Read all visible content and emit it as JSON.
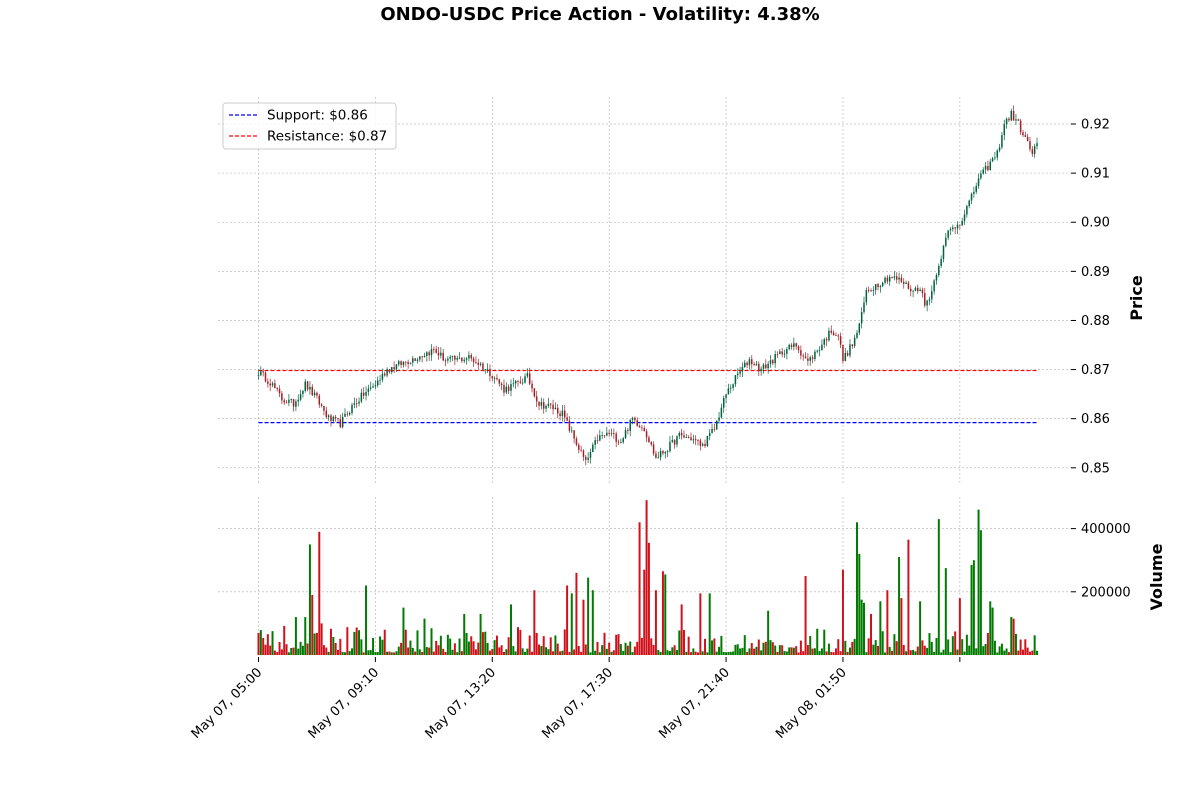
{
  "chart_data": {
    "type": "candlestick",
    "title": "ONDO-USDC Price Action - Volatility: 4.38%",
    "x_tick_labels": [
      "May 07, 05:00",
      "May 07, 09:10",
      "May 07, 13:20",
      "May 07, 17:30",
      "May 07, 21:40",
      "May 08, 01:50"
    ],
    "x_tick_indices": [
      0,
      50,
      100,
      150,
      200,
      250
    ],
    "bar_count": 290,
    "interval_minutes": 5,
    "price_panel": {
      "ylabel": "Price",
      "ylim": [
        0.8465,
        0.9255
      ],
      "yticks": [
        0.85,
        0.86,
        0.87,
        0.88,
        0.89,
        0.9,
        0.91,
        0.92
      ],
      "ytick_labels": [
        "0.85",
        "0.86",
        "0.87",
        "0.88",
        "0.89",
        "0.90",
        "0.91",
        "0.92"
      ],
      "grid": true,
      "legend_position": "upper-left"
    },
    "volume_panel": {
      "ylabel": "Volume",
      "ylim": [
        0,
        500000
      ],
      "yticks": [
        200000,
        400000
      ],
      "ytick_labels": [
        "200000",
        "400000"
      ]
    },
    "lines": [
      {
        "name": "Support: $0.86",
        "value": 0.8592,
        "color": "#0000ff",
        "style": "dashed"
      },
      {
        "name": "Resistance: $0.87",
        "value": 0.8698,
        "color": "#ff0000",
        "style": "dashed"
      }
    ],
    "close_path": [
      [
        0,
        0.8695
      ],
      [
        5,
        0.8675
      ],
      [
        10,
        0.864
      ],
      [
        15,
        0.863
      ],
      [
        20,
        0.867
      ],
      [
        25,
        0.864
      ],
      [
        30,
        0.86
      ],
      [
        35,
        0.859
      ],
      [
        40,
        0.8625
      ],
      [
        45,
        0.865
      ],
      [
        50,
        0.867
      ],
      [
        55,
        0.87
      ],
      [
        60,
        0.871
      ],
      [
        65,
        0.872
      ],
      [
        70,
        0.873
      ],
      [
        75,
        0.874
      ],
      [
        80,
        0.872
      ],
      [
        85,
        0.872
      ],
      [
        90,
        0.8725
      ],
      [
        95,
        0.871
      ],
      [
        100,
        0.869
      ],
      [
        105,
        0.866
      ],
      [
        110,
        0.867
      ],
      [
        115,
        0.8685
      ],
      [
        120,
        0.863
      ],
      [
        125,
        0.8625
      ],
      [
        130,
        0.861
      ],
      [
        135,
        0.856
      ],
      [
        140,
        0.851
      ],
      [
        145,
        0.856
      ],
      [
        150,
        0.857
      ],
      [
        155,
        0.8555
      ],
      [
        160,
        0.86
      ],
      [
        165,
        0.858
      ],
      [
        170,
        0.852
      ],
      [
        175,
        0.854
      ],
      [
        180,
        0.8565
      ],
      [
        185,
        0.856
      ],
      [
        190,
        0.8545
      ],
      [
        195,
        0.858
      ],
      [
        200,
        0.865
      ],
      [
        205,
        0.869
      ],
      [
        210,
        0.872
      ],
      [
        215,
        0.87
      ],
      [
        220,
        0.872
      ],
      [
        225,
        0.874
      ],
      [
        230,
        0.875
      ],
      [
        235,
        0.8715
      ],
      [
        240,
        0.8745
      ],
      [
        245,
        0.878
      ],
      [
        248,
        0.877
      ],
      [
        250,
        0.872
      ],
      [
        255,
        0.876
      ],
      [
        258,
        0.881
      ],
      [
        260,
        0.886
      ],
      [
        265,
        0.8875
      ],
      [
        270,
        0.889
      ],
      [
        275,
        0.888
      ],
      [
        280,
        0.886
      ],
      [
        283,
        0.887
      ],
      [
        285,
        0.883
      ],
      [
        288,
        0.886
      ],
      [
        290,
        0.89
      ]
    ],
    "close_path_extension": [
      [
        290,
        0.89
      ],
      [
        295,
        0.898
      ],
      [
        300,
        0.9
      ],
      [
        305,
        0.905
      ],
      [
        308,
        0.909
      ],
      [
        310,
        0.91
      ],
      [
        313,
        0.912
      ],
      [
        316,
        0.914
      ],
      [
        319,
        0.92
      ],
      [
        322,
        0.922
      ],
      [
        325,
        0.92
      ],
      [
        327,
        0.918
      ],
      [
        329,
        0.916
      ],
      [
        331,
        0.914
      ],
      [
        333,
        0.916
      ]
    ],
    "volume_spikes": [
      [
        0,
        70000
      ],
      [
        16,
        120000
      ],
      [
        20,
        120000
      ],
      [
        22,
        350000
      ],
      [
        23,
        190000
      ],
      [
        26,
        390000
      ],
      [
        27,
        100000
      ],
      [
        46,
        220000
      ],
      [
        62,
        150000
      ],
      [
        71,
        115000
      ],
      [
        88,
        130000
      ],
      [
        95,
        130000
      ],
      [
        108,
        160000
      ],
      [
        118,
        205000
      ],
      [
        132,
        220000
      ],
      [
        134,
        195000
      ],
      [
        136,
        260000
      ],
      [
        139,
        175000
      ],
      [
        141,
        245000
      ],
      [
        143,
        205000
      ],
      [
        163,
        420000
      ],
      [
        165,
        270000
      ],
      [
        166,
        490000
      ],
      [
        167,
        355000
      ],
      [
        170,
        205000
      ],
      [
        173,
        265000
      ],
      [
        174,
        255000
      ],
      [
        181,
        160000
      ],
      [
        189,
        195000
      ],
      [
        193,
        195000
      ],
      [
        218,
        140000
      ],
      [
        234,
        250000
      ],
      [
        250,
        270000
      ],
      [
        256,
        420000
      ],
      [
        257,
        320000
      ],
      [
        258,
        175000
      ],
      [
        259,
        165000
      ],
      [
        262,
        130000
      ],
      [
        266,
        170000
      ],
      [
        269,
        205000
      ],
      [
        274,
        310000
      ],
      [
        275,
        180000
      ],
      [
        278,
        365000
      ],
      [
        283,
        170000
      ],
      [
        291,
        430000
      ],
      [
        294,
        275000
      ],
      [
        300,
        180000
      ],
      [
        305,
        285000
      ],
      [
        306,
        300000
      ],
      [
        308,
        460000
      ],
      [
        309,
        395000
      ],
      [
        313,
        170000
      ],
      [
        314,
        150000
      ],
      [
        322,
        120000
      ],
      [
        323,
        115000
      ]
    ]
  }
}
